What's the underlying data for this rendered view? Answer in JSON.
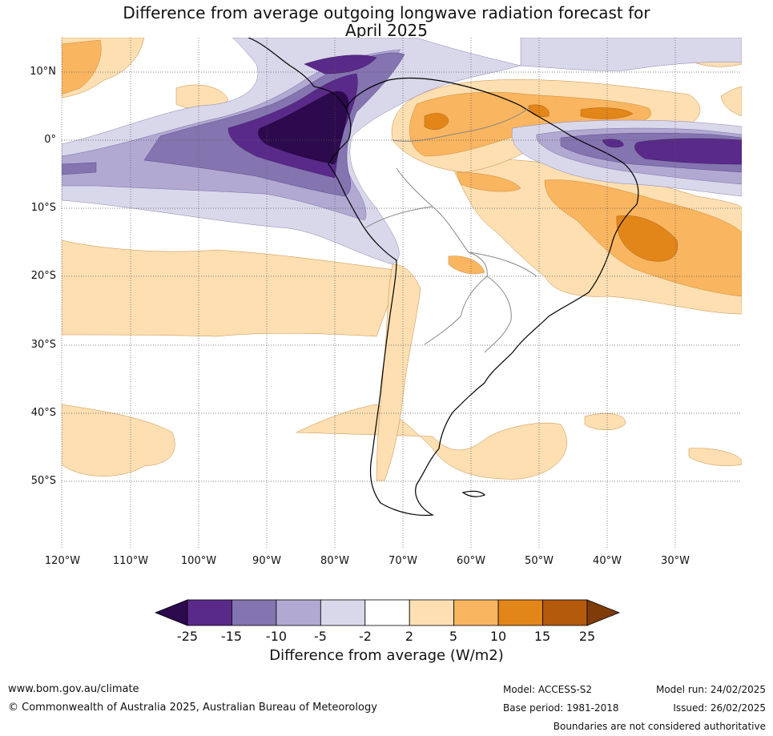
{
  "title": {
    "line1": "Difference from average outgoing longwave radiation forecast for",
    "line2": "April 2025"
  },
  "map": {
    "lat_labels": [
      "10°N",
      "0°",
      "10°S",
      "20°S",
      "30°S",
      "40°S",
      "50°S"
    ],
    "lon_labels": [
      "120°W",
      "110°W",
      "100°W",
      "90°W",
      "80°W",
      "70°W",
      "60°W",
      "50°W",
      "40°W",
      "30°W"
    ]
  },
  "colorbar": {
    "ticks": [
      "-25",
      "-15",
      "-10",
      "-5",
      "-2",
      "2",
      "5",
      "10",
      "15",
      "25"
    ],
    "colors": [
      "#2d0a4e",
      "#5a2a8a",
      "#8474b0",
      "#b1a9d1",
      "#d9d8ea",
      "#ffffff",
      "#fddfb2",
      "#f9b55f",
      "#e2861a",
      "#b35a0d",
      "#7f3b08"
    ],
    "label": "Difference from average (W/m2)"
  },
  "footer": {
    "website": "www.bom.gov.au/climate",
    "copyright": "© Commonwealth of Australia 2025, Australian Bureau of Meteorology",
    "model": "Model: ACCESS-S2",
    "base_period": "Base period: 1981-2018",
    "model_run": "Model run: 24/02/2025",
    "issued": "Issued: 26/02/2025",
    "disclaimer": "Boundaries are not considered authoritative"
  }
}
